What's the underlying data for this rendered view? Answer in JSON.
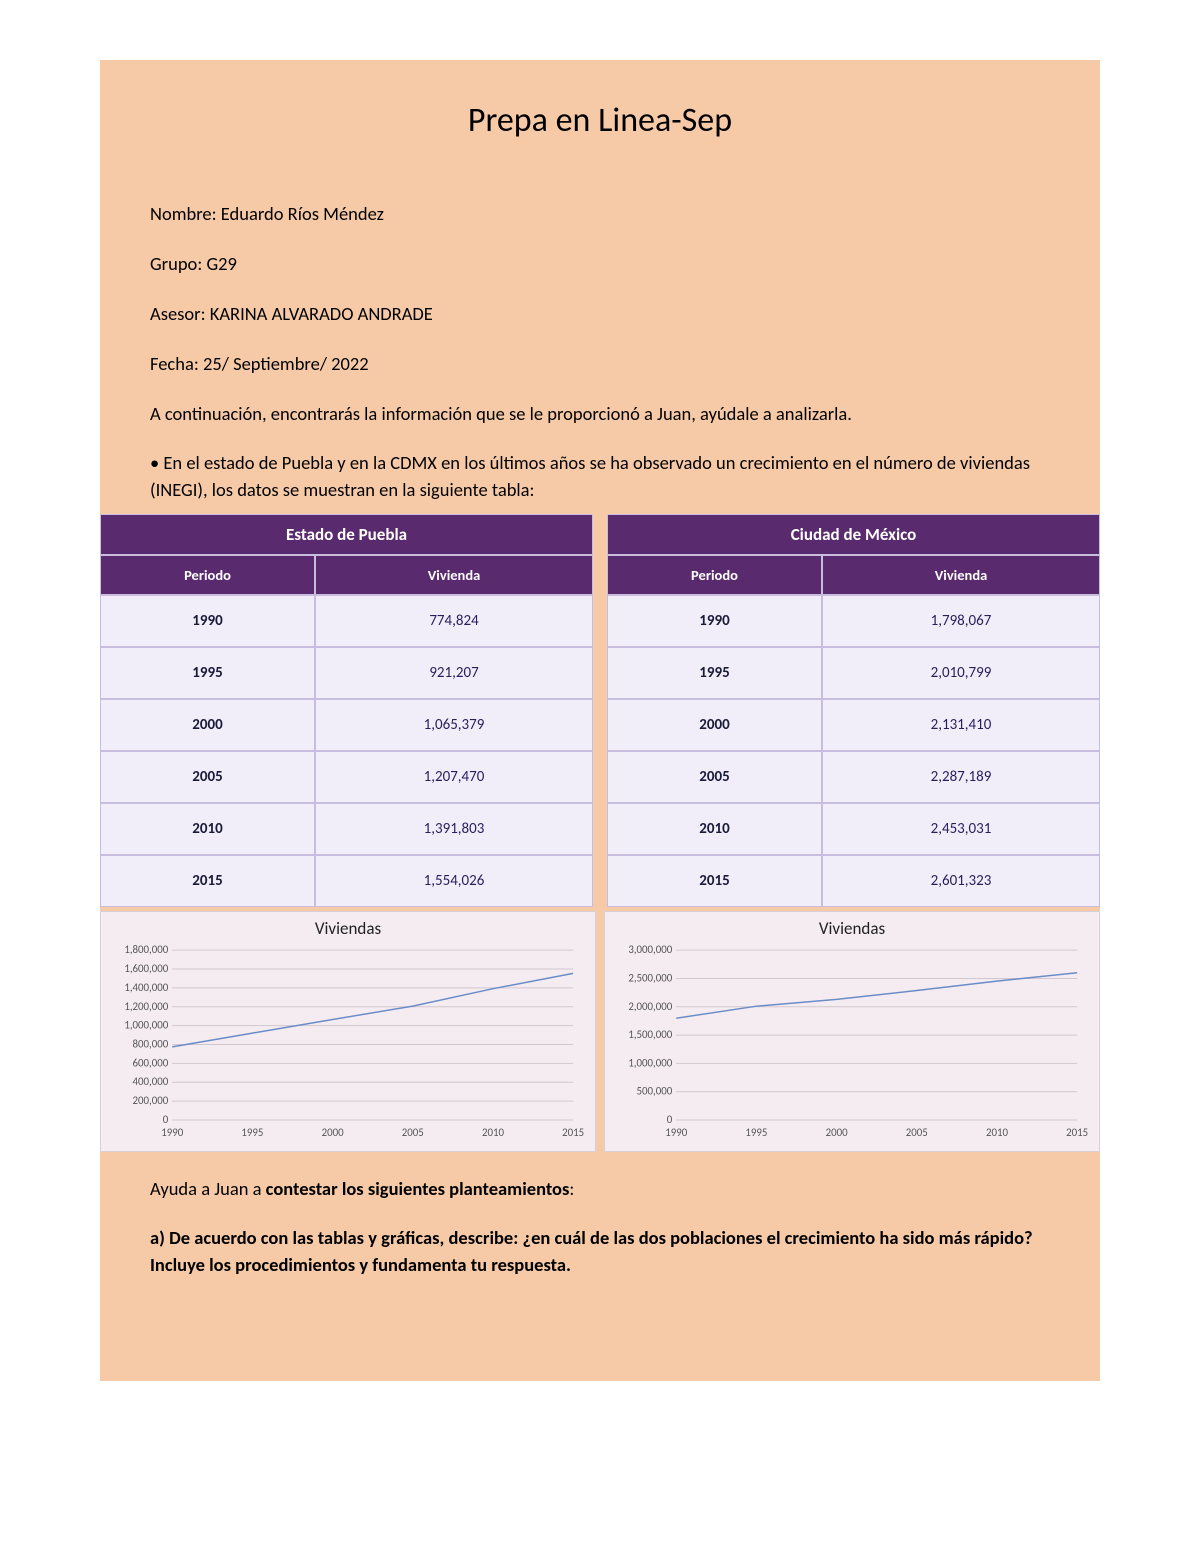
{
  "title": "Prepa en Linea-Sep",
  "info": {
    "nombre_label": "Nombre: ",
    "nombre": "Eduardo Ríos Méndez",
    "grupo_label": "Grupo: ",
    "grupo": "G29",
    "asesor_label": "Asesor: ",
    "asesor": "KARINA ALVARADO ANDRADE",
    "fecha_label": "Fecha: ",
    "fecha": "25/ Septiembre/ 2022"
  },
  "intro1": "A continuación, encontrarás la información que se le proporcionó a Juan, ayúdale a analizarla.",
  "intro2": "• En el estado de Puebla y en la CDMX en los últimos años se ha observado un crecimiento en el número de viviendas (INEGI), los datos se muestran en la siguiente tabla:",
  "tables": {
    "header_bg": "#5a2a6e",
    "header_fg": "#ffffff",
    "cell_bg": "#f2eef9",
    "border_color": "#c9bddf",
    "value_color": "#2a1d5e",
    "col1": "Periodo",
    "col2": "Vivienda",
    "puebla": {
      "title": "Estado de Puebla",
      "rows": [
        {
          "periodo": "1990",
          "vivienda": "774,824"
        },
        {
          "periodo": "1995",
          "vivienda": "921,207"
        },
        {
          "periodo": "2000",
          "vivienda": "1,065,379"
        },
        {
          "periodo": "2005",
          "vivienda": "1,207,470"
        },
        {
          "periodo": "2010",
          "vivienda": "1,391,803"
        },
        {
          "periodo": "2015",
          "vivienda": "1,554,026"
        }
      ]
    },
    "cdmx": {
      "title": "Ciudad de México",
      "rows": [
        {
          "periodo": "1990",
          "vivienda": "1,798,067"
        },
        {
          "periodo": "1995",
          "vivienda": "2,010,799"
        },
        {
          "periodo": "2000",
          "vivienda": "2,131,410"
        },
        {
          "periodo": "2005",
          "vivienda": "2,287,189"
        },
        {
          "periodo": "2010",
          "vivienda": "2,453,031"
        },
        {
          "periodo": "2015",
          "vivienda": "2,601,323"
        }
      ]
    }
  },
  "charts": {
    "title": "Viviendas",
    "background": "#f4ecf1",
    "grid_color": "#d0c8ce",
    "line_color": "#6a8cc7",
    "text_color": "#555555",
    "x_categories": [
      "1990",
      "1995",
      "2000",
      "2005",
      "2010",
      "2015"
    ],
    "puebla": {
      "type": "line",
      "ylim": [
        0,
        1800000
      ],
      "ytick_step": 200000,
      "ytick_labels": [
        "0",
        "200,000",
        "400,000",
        "600,000",
        "800,000",
        "1,000,000",
        "1,200,000",
        "1,400,000",
        "1,600,000",
        "1,800,000"
      ],
      "values": [
        774824,
        921207,
        1065379,
        1207470,
        1391803,
        1554026
      ]
    },
    "cdmx": {
      "type": "line",
      "ylim": [
        0,
        3000000
      ],
      "ytick_step": 500000,
      "ytick_labels": [
        "0",
        "500,000",
        "1,000,000",
        "1,500,000",
        "2,000,000",
        "2,500,000",
        "3,000,000"
      ],
      "values": [
        1798067,
        2010799,
        2131410,
        2287189,
        2453031,
        2601323
      ]
    }
  },
  "outro1_a": "Ayuda a Juan a ",
  "outro1_b": "contestar los siguientes planteamientos",
  "outro1_c": ":",
  "outro2": "a) De acuerdo con las tablas y gráficas, describe: ¿en cuál de las dos poblaciones el crecimiento ha sido más rápido? Incluye los procedimientos y fundamenta tu respuesta."
}
